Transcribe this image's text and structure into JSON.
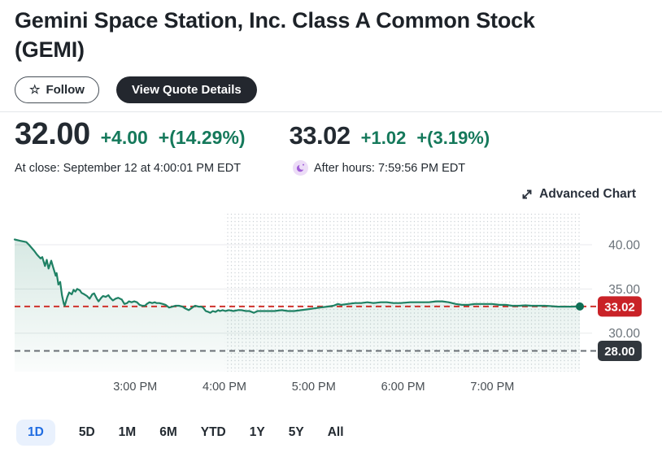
{
  "header": {
    "title": "Gemini Space Station, Inc. Class A Common Stock (GEMI)",
    "follow_label": "Follow",
    "view_quote_label": "View Quote Details"
  },
  "quote": {
    "regular": {
      "price": "32.00",
      "change": "+4.00",
      "change_pct": "+(14.29%)",
      "timestamp": "At close: September 12 at 4:00:01 PM EDT"
    },
    "after_hours": {
      "price": "33.02",
      "change": "+1.02",
      "change_pct": "+(3.19%)",
      "timestamp": "After hours: 7:59:56 PM EDT"
    }
  },
  "advanced_chart_label": "Advanced Chart",
  "colors": {
    "positive_green": "#15795b",
    "chart_line_teal": "#1f8164",
    "current_badge_red": "#c92227",
    "current_dash_red": "#cf322c",
    "previous_close_badge": "#31373d",
    "previous_close_dash": "#696f75",
    "active_tab_blue": "#1f6ce1",
    "active_tab_bg": "#e9f1fd"
  },
  "range_tabs": {
    "items": [
      {
        "label": "1D",
        "active": true
      },
      {
        "label": "5D",
        "active": false
      },
      {
        "label": "1M",
        "active": false
      },
      {
        "label": "6M",
        "active": false
      },
      {
        "label": "YTD",
        "active": false
      },
      {
        "label": "1Y",
        "active": false
      },
      {
        "label": "5Y",
        "active": false
      },
      {
        "label": "All",
        "active": false
      }
    ]
  },
  "chart_data": {
    "type": "area",
    "symbol": "GEMI",
    "legend": false,
    "grid": true,
    "x_axis": {
      "unit": "hour-of-day-24h",
      "t_range": [
        13.65,
        19.98
      ],
      "ticks": [
        {
          "t": 15,
          "label": "3:00 PM"
        },
        {
          "t": 16,
          "label": "4:00 PM"
        },
        {
          "t": 17,
          "label": "5:00 PM"
        },
        {
          "t": 18,
          "label": "6:00 PM"
        },
        {
          "t": 19,
          "label": "7:00 PM"
        }
      ]
    },
    "y_axis": {
      "range": [
        25.6,
        44.0
      ],
      "ticks": [
        {
          "value": 40,
          "label": "40.00"
        },
        {
          "value": 35,
          "label": "35.00"
        },
        {
          "value": 30,
          "label": "30.00"
        }
      ]
    },
    "markers": {
      "current": {
        "value": 33.02,
        "label": "33.02"
      },
      "previous_close": {
        "value": 28.0,
        "label": "28.00"
      }
    },
    "sessions": {
      "after_hours_start": 16.0
    },
    "series": [
      {
        "name": "GEMI price",
        "color": "#1f8164",
        "points": [
          [
            13.65,
            40.6
          ],
          [
            13.71,
            40.45
          ],
          [
            13.78,
            40.3
          ],
          [
            13.81,
            40.0
          ],
          [
            13.87,
            39.3
          ],
          [
            13.9,
            38.9
          ],
          [
            13.94,
            38.45
          ],
          [
            13.96,
            38.6
          ],
          [
            13.99,
            37.6
          ],
          [
            14.01,
            38.3
          ],
          [
            14.03,
            37.3
          ],
          [
            14.06,
            38.2
          ],
          [
            14.08,
            37.5
          ],
          [
            14.11,
            36.5
          ],
          [
            14.12,
            36.8
          ],
          [
            14.14,
            35.5
          ],
          [
            14.16,
            35.8
          ],
          [
            14.18,
            34.3
          ],
          [
            14.2,
            33.35
          ],
          [
            14.21,
            33.1
          ],
          [
            14.24,
            34.1
          ],
          [
            14.26,
            34.6
          ],
          [
            14.29,
            34.4
          ],
          [
            14.31,
            34.9
          ],
          [
            14.33,
            34.7
          ],
          [
            14.35,
            35.0
          ],
          [
            14.38,
            34.85
          ],
          [
            14.4,
            34.55
          ],
          [
            14.43,
            34.4
          ],
          [
            14.46,
            34.2
          ],
          [
            14.49,
            33.9
          ],
          [
            14.52,
            34.4
          ],
          [
            14.54,
            34.5
          ],
          [
            14.57,
            33.9
          ],
          [
            14.59,
            33.6
          ],
          [
            14.62,
            34.0
          ],
          [
            14.64,
            34.2
          ],
          [
            14.67,
            34.1
          ],
          [
            14.7,
            34.3
          ],
          [
            14.72,
            34.0
          ],
          [
            14.75,
            33.7
          ],
          [
            14.78,
            33.9
          ],
          [
            14.81,
            34.0
          ],
          [
            14.83,
            33.9
          ],
          [
            14.85,
            33.8
          ],
          [
            14.88,
            33.3
          ],
          [
            14.91,
            33.4
          ],
          [
            14.93,
            33.6
          ],
          [
            14.96,
            33.5
          ],
          [
            14.99,
            33.6
          ],
          [
            15.02,
            33.5
          ],
          [
            15.05,
            33.2
          ],
          [
            15.08,
            33.1
          ],
          [
            15.11,
            33.1
          ],
          [
            15.13,
            33.3
          ],
          [
            15.16,
            33.5
          ],
          [
            15.19,
            33.4
          ],
          [
            15.22,
            33.5
          ],
          [
            15.24,
            33.4
          ],
          [
            15.27,
            33.4
          ],
          [
            15.31,
            33.3
          ],
          [
            15.34,
            33.2
          ],
          [
            15.38,
            32.9
          ],
          [
            15.42,
            33.0
          ],
          [
            15.45,
            33.1
          ],
          [
            15.49,
            33.1
          ],
          [
            15.53,
            33.0
          ],
          [
            15.56,
            32.8
          ],
          [
            15.6,
            32.6
          ],
          [
            15.64,
            32.9
          ],
          [
            15.67,
            33.1
          ],
          [
            15.71,
            33.0
          ],
          [
            15.74,
            33.0
          ],
          [
            15.76,
            32.9
          ],
          [
            15.79,
            32.5
          ],
          [
            15.82,
            32.4
          ],
          [
            15.84,
            32.3
          ],
          [
            15.87,
            32.5
          ],
          [
            15.9,
            32.4
          ],
          [
            15.93,
            32.6
          ],
          [
            15.95,
            32.5
          ],
          [
            15.98,
            32.6
          ],
          [
            16.01,
            32.5
          ],
          [
            16.05,
            32.6
          ],
          [
            16.1,
            32.5
          ],
          [
            16.15,
            32.6
          ],
          [
            16.19,
            32.6
          ],
          [
            16.24,
            32.5
          ],
          [
            16.28,
            32.5
          ],
          [
            16.33,
            32.3
          ],
          [
            16.37,
            32.5
          ],
          [
            16.42,
            32.5
          ],
          [
            16.49,
            32.5
          ],
          [
            16.56,
            32.5
          ],
          [
            16.64,
            32.6
          ],
          [
            16.71,
            32.5
          ],
          [
            16.78,
            32.5
          ],
          [
            16.86,
            32.6
          ],
          [
            16.93,
            32.7
          ],
          [
            17.0,
            32.8
          ],
          [
            17.07,
            32.9
          ],
          [
            17.15,
            33.0
          ],
          [
            17.22,
            33.1
          ],
          [
            17.27,
            33.3
          ],
          [
            17.31,
            33.2
          ],
          [
            17.38,
            33.3
          ],
          [
            17.46,
            33.4
          ],
          [
            17.53,
            33.4
          ],
          [
            17.6,
            33.5
          ],
          [
            17.67,
            33.4
          ],
          [
            17.75,
            33.5
          ],
          [
            17.82,
            33.5
          ],
          [
            17.89,
            33.4
          ],
          [
            17.97,
            33.4
          ],
          [
            18.08,
            33.5
          ],
          [
            18.15,
            33.5
          ],
          [
            18.22,
            33.5
          ],
          [
            18.29,
            33.5
          ],
          [
            18.37,
            33.6
          ],
          [
            18.44,
            33.6
          ],
          [
            18.51,
            33.5
          ],
          [
            18.59,
            33.3
          ],
          [
            18.66,
            33.2
          ],
          [
            18.73,
            33.2
          ],
          [
            18.8,
            33.3
          ],
          [
            18.88,
            33.3
          ],
          [
            18.95,
            33.3
          ],
          [
            19.0,
            33.3
          ],
          [
            19.08,
            33.2
          ],
          [
            19.15,
            33.2
          ],
          [
            19.22,
            33.1
          ],
          [
            19.3,
            33.1
          ],
          [
            19.37,
            33.15
          ],
          [
            19.44,
            33.1
          ],
          [
            19.51,
            33.1
          ],
          [
            19.59,
            33.1
          ],
          [
            19.66,
            33.05
          ],
          [
            19.73,
            33.0
          ],
          [
            19.81,
            33.0
          ],
          [
            19.88,
            33.0
          ],
          [
            19.98,
            33.02
          ]
        ]
      }
    ]
  }
}
